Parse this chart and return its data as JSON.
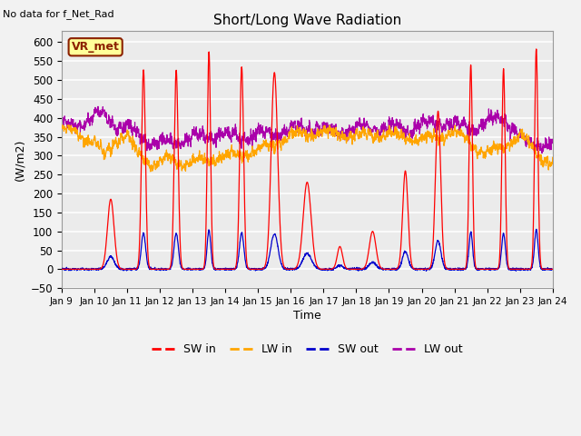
{
  "title": "Short/Long Wave Radiation",
  "top_left_text": "No data for f_Net_Rad",
  "box_label": "VR_met",
  "ylabel": "(W/m2)",
  "xlabel": "Time",
  "ylim": [
    -50,
    630
  ],
  "yticks": [
    -50,
    0,
    50,
    100,
    150,
    200,
    250,
    300,
    350,
    400,
    450,
    500,
    550,
    600
  ],
  "xtick_labels": [
    "Jan 9",
    "Jan 10",
    "Jan 11",
    "Jan 12",
    "Jan 13",
    "Jan 14",
    "Jan 15",
    "Jan 16",
    "Jan 17",
    "Jan 18",
    "Jan 19",
    "Jan 20",
    "Jan 21",
    "Jan 22",
    "Jan 23",
    "Jan 24"
  ],
  "colors": {
    "SW_in": "#FF0000",
    "LW_in": "#FFA500",
    "SW_out": "#0000CC",
    "LW_out": "#AA00AA"
  },
  "legend_labels": [
    "SW in",
    "LW in",
    "SW out",
    "LW out"
  ],
  "n_days": 15,
  "points_per_day": 144,
  "SW_in_peaks": [
    0,
    185,
    527,
    526,
    575,
    535,
    520,
    230,
    60,
    100,
    260,
    418,
    540,
    530,
    582
  ],
  "SW_in_widths": [
    0.08,
    0.1,
    0.06,
    0.06,
    0.05,
    0.06,
    0.1,
    0.12,
    0.08,
    0.1,
    0.08,
    0.08,
    0.05,
    0.05,
    0.05
  ]
}
